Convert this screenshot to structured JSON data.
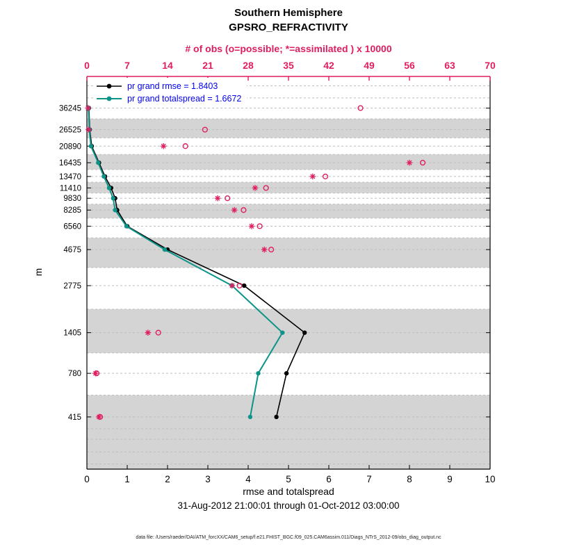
{
  "header": {
    "title1": "Southern Hemisphere",
    "title2": "GPSRO_REFRACTIVITY"
  },
  "footer": {
    "text": "data file: /Users/raeder/DAI/ATM_forcXX/CAM6_setup/f.e21.FHIST_BGC.f09_025.CAM6assim.011/Diags_NTrS_2012-09/obs_diag_output.nc"
  },
  "legend": {
    "rmse_value": 1.8403,
    "totalspread_value": 1.6672,
    "text_color": "#0000ee"
  },
  "chart_data": {
    "type": "line",
    "title": "Southern Hemisphere GPSRO_REFRACTIVITY",
    "subtitle": "31-Aug-2012 21:00:01 through 01-Oct-2012 03:00:00",
    "colors": {
      "obs": "#df1d5f",
      "rmse": "#000000",
      "spread": "#0d9488",
      "band": "#d4d4d4",
      "grid": "#bdbdbd"
    },
    "y_axis": {
      "label": "m",
      "scale": "log10",
      "levels": [
        36245,
        26525,
        20890,
        16435,
        13470,
        11410,
        9830,
        8285,
        6560,
        4675,
        2775,
        1405,
        780,
        415
      ],
      "shaded_levels": [
        26525,
        16435,
        11410,
        8285,
        4675,
        1405,
        415
      ],
      "minor_gridlines_m": [
        50000,
        42000,
        350,
        300,
        250,
        210
      ],
      "range_log10": [
        2.29,
        4.758
      ]
    },
    "x_bottom": {
      "label": "rmse and totalspread",
      "ticks": [
        0,
        1,
        2,
        3,
        4,
        5,
        6,
        7,
        8,
        9,
        10
      ],
      "range": [
        0,
        10
      ]
    },
    "x_top": {
      "label": "# of obs (o=possible; *=assimilated ) x 10000",
      "ticks": [
        0,
        7,
        14,
        21,
        28,
        35,
        42,
        49,
        56,
        63,
        70
      ],
      "range": [
        0,
        70
      ]
    },
    "series": [
      {
        "name": "pr grand rmse = 1.8403",
        "axis": "bottom",
        "marker": "dot",
        "color_key": "rmse",
        "values": [
          0.05,
          0.07,
          0.12,
          0.3,
          0.45,
          0.6,
          0.7,
          0.75,
          1.0,
          2.0,
          3.9,
          5.4,
          4.95,
          4.7
        ]
      },
      {
        "name": "pr grand totalspread = 1.6672",
        "axis": "bottom",
        "marker": "dot",
        "color_key": "spread",
        "values": [
          0.04,
          0.06,
          0.1,
          0.28,
          0.42,
          0.55,
          0.65,
          0.7,
          0.98,
          1.93,
          3.6,
          4.85,
          4.25,
          4.05
        ]
      },
      {
        "name": "possible",
        "axis": "top",
        "marker": "circle",
        "color_key": "obs",
        "values": [
          47.5,
          20.5,
          17.1,
          58.3,
          41.4,
          31.1,
          24.4,
          27.2,
          30.0,
          32.0,
          26.5,
          12.4,
          1.7,
          2.3
        ]
      },
      {
        "name": "assimilated",
        "axis": "top",
        "marker": "asterisk",
        "color_key": "obs",
        "values": [
          0.2,
          0.3,
          13.3,
          56.0,
          39.2,
          29.2,
          22.7,
          25.6,
          28.6,
          30.8,
          25.2,
          10.6,
          1.5,
          2.1
        ]
      }
    ]
  }
}
